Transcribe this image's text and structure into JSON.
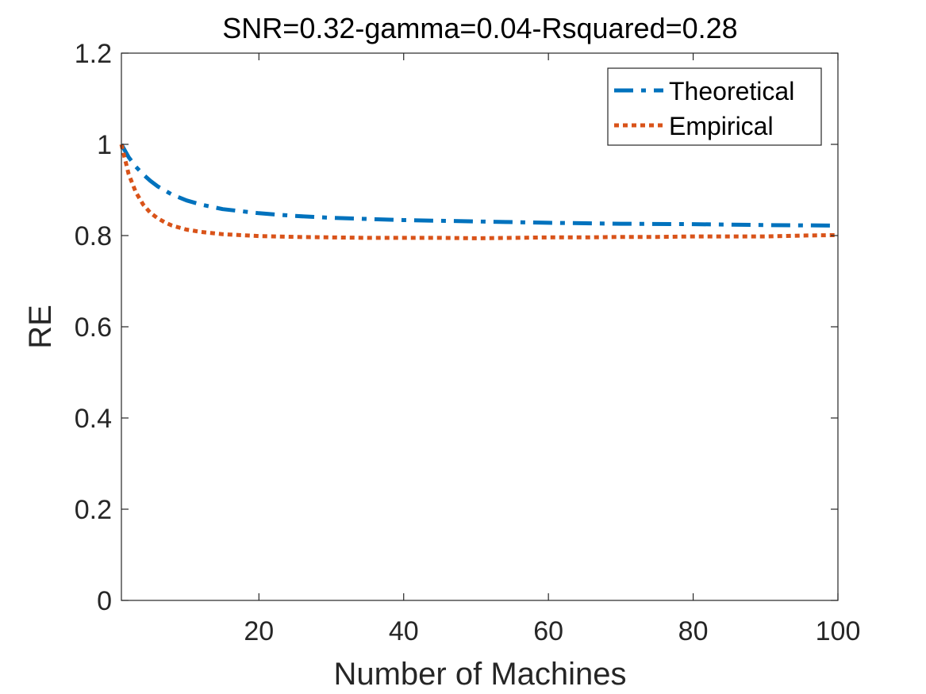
{
  "chart_data": {
    "type": "line",
    "title": "SNR=0.32-gamma=0.04-Rsquared=0.28",
    "xlabel": "Number of Machines",
    "ylabel": "RE",
    "xlim": [
      1,
      100
    ],
    "ylim": [
      0,
      1.2
    ],
    "xticks": [
      20,
      40,
      60,
      80,
      100
    ],
    "xtick_labels": [
      "20",
      "40",
      "60",
      "80",
      "100"
    ],
    "yticks": [
      0,
      0.2,
      0.4,
      0.6,
      0.8,
      1,
      1.2
    ],
    "ytick_labels": [
      "0",
      "0.2",
      "0.4",
      "0.6",
      "0.8",
      "1",
      "1.2"
    ],
    "grid": false,
    "legend_position": "top-right",
    "series": [
      {
        "name": "Theoretical",
        "color": "#0072BD",
        "line_style": "dash-dot",
        "x": [
          1,
          2,
          3,
          4,
          5,
          6,
          8,
          10,
          12,
          15,
          20,
          25,
          30,
          40,
          50,
          60,
          70,
          80,
          90,
          100
        ],
        "y": [
          1.0,
          0.972,
          0.951,
          0.934,
          0.92,
          0.908,
          0.89,
          0.877,
          0.868,
          0.858,
          0.849,
          0.843,
          0.839,
          0.834,
          0.831,
          0.828,
          0.826,
          0.825,
          0.823,
          0.822
        ]
      },
      {
        "name": "Empirical",
        "color": "#D95319",
        "line_style": "dotted",
        "x": [
          1,
          2,
          3,
          4,
          5,
          6,
          7,
          8,
          10,
          12,
          15,
          20,
          25,
          30,
          35,
          40,
          45,
          50,
          55,
          60,
          65,
          70,
          75,
          80,
          85,
          90,
          95,
          100
        ],
        "y": [
          1.0,
          0.935,
          0.895,
          0.868,
          0.85,
          0.838,
          0.829,
          0.822,
          0.813,
          0.808,
          0.803,
          0.799,
          0.797,
          0.796,
          0.795,
          0.795,
          0.795,
          0.794,
          0.795,
          0.796,
          0.796,
          0.797,
          0.797,
          0.798,
          0.798,
          0.798,
          0.8,
          0.801
        ]
      }
    ]
  }
}
